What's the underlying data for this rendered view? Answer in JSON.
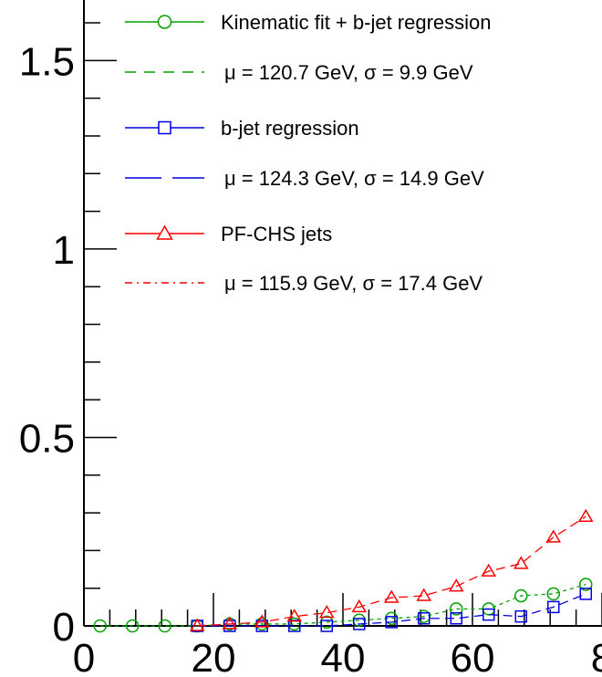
{
  "chart_data": {
    "type": "line",
    "xlim": [
      0,
      80
    ],
    "ylim": [
      0,
      1.65
    ],
    "x_ticks": [
      "0",
      "20",
      "40",
      "60",
      "8"
    ],
    "y_ticks": [
      "0",
      "0.5",
      "1",
      "1.5"
    ],
    "x": [
      2.5,
      7.5,
      12.5,
      17.5,
      22.5,
      27.5,
      32.5,
      37.5,
      42.5,
      47.5,
      52.5,
      57.5,
      62.5,
      67.5,
      72.5,
      77.5
    ],
    "series": [
      {
        "name": "Kinematic fit + b-jet regression",
        "color": "#00a000",
        "marker": "circle",
        "values": [
          0.0,
          0.0,
          0.0,
          0.0,
          0.005,
          0.005,
          0.005,
          0.01,
          0.015,
          0.02,
          0.025,
          0.045,
          0.045,
          0.08,
          0.085,
          0.11
        ]
      },
      {
        "name": "b-jet regression",
        "color": "#0000e0",
        "marker": "square",
        "values": [
          null,
          null,
          null,
          0.0,
          0.0,
          0.0,
          0.0,
          0.0,
          0.005,
          0.01,
          0.02,
          0.02,
          0.03,
          0.025,
          0.05,
          0.085
        ]
      },
      {
        "name": "PF-CHS jets",
        "color": "#ff0000",
        "marker": "triangle",
        "values": [
          null,
          null,
          null,
          0.0,
          0.005,
          0.01,
          0.025,
          0.035,
          0.05,
          0.075,
          0.08,
          0.105,
          0.145,
          0.165,
          0.235,
          0.29
        ]
      }
    ],
    "legend": [
      {
        "label": "Kinematic fit + b-jet regression",
        "color": "#00a000",
        "style": "solid",
        "marker": "circle"
      },
      {
        "label": "μ = 120.7 GeV,  σ = 9.9 GeV",
        "color": "#00a000",
        "style": "dashed",
        "marker": "none"
      },
      {
        "label": "b-jet regression",
        "color": "#0000e0",
        "style": "solid",
        "marker": "square"
      },
      {
        "label": "μ = 124.3 GeV,  σ = 14.9 GeV",
        "color": "#0000e0",
        "style": "longdash",
        "marker": "none"
      },
      {
        "label": "PF-CHS jets",
        "color": "#ff0000",
        "style": "solid",
        "marker": "triangle"
      },
      {
        "label": "μ = 115.9 GeV,  σ = 17.4 GeV",
        "color": "#ff0000",
        "style": "dashdot",
        "marker": "none"
      }
    ]
  }
}
